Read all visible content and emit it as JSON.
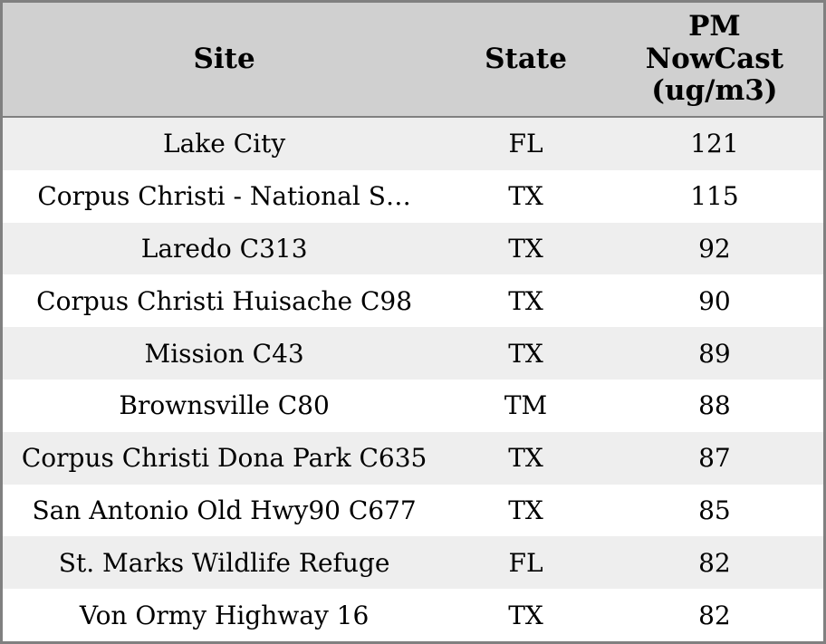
{
  "chart_data": {
    "type": "table",
    "columns": [
      "Site",
      "State",
      "PM NowCast (ug/m3)"
    ],
    "rows": [
      [
        "Lake City",
        "FL",
        121
      ],
      [
        "Corpus Christi - National S…",
        "TX",
        115
      ],
      [
        "Laredo C313",
        "TX",
        92
      ],
      [
        "Corpus Christi Huisache C98",
        "TX",
        90
      ],
      [
        "Mission C43",
        "TX",
        89
      ],
      [
        "Brownsville C80",
        "TM",
        88
      ],
      [
        "Corpus Christi Dona Park C635",
        "TX",
        87
      ],
      [
        "San Antonio Old Hwy90 C677",
        "TX",
        85
      ],
      [
        "St. Marks Wildlife Refuge",
        "FL",
        82
      ],
      [
        "Von Ormy Highway 16",
        "TX",
        82
      ]
    ]
  },
  "colors": {
    "outer_border": "#808080",
    "header_bg": "#d0d0d0",
    "header_separator": "#808080",
    "row_odd_bg": "#eeeeee",
    "row_even_bg": "#ffffff",
    "text": "#000000"
  }
}
